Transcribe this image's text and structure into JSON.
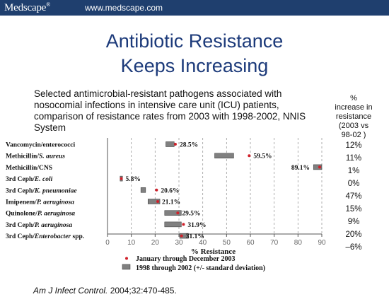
{
  "header": {
    "brand": "Medscape",
    "brand_mark": "®",
    "url": "www.medscape.com"
  },
  "slide": {
    "title_line1": "Antibiotic Resistance",
    "title_line2": "Keeps Increasing",
    "subtitle": "Selected antimicrobial-resistant pathogens associated with nosocomial infections in intensive care unit (ICU) patients, comparison of resistance rates from 2003 with 1998-2002, NNIS System",
    "increase_header": [
      "%",
      "increase in",
      "resistance",
      "(2003 vs",
      "98-02 )"
    ],
    "increase_values": [
      "12%",
      "11%",
      "1%",
      "0%",
      "47%",
      "15%",
      "9%",
      "20%",
      "–6%"
    ],
    "citation_journal": "Am J Infect Control.",
    "citation_rest": " 2004;32:470-485."
  },
  "colors": {
    "header_bg": "#1f3f6e",
    "title": "#1c3a7a",
    "point": "#d0202a",
    "range_fill": "#808080"
  },
  "chart_data": {
    "type": "range-dot",
    "categories": [
      "Vancomycin/enterococci",
      "Methicillin/S. aureus",
      "Methicillin/CNS",
      "3rd Ceph/E. coli",
      "3rd Ceph/K. pneumoniae",
      "Imipenem/P. aeruginosa",
      "Quinolone/P. aeruginosa",
      "3rd Ceph/P. aeruginosa",
      "3rd Ceph/Enterobacter spp."
    ],
    "category_parts": [
      {
        "pre": "Vancomycin/enterococci",
        "it": "",
        "post": ""
      },
      {
        "pre": "Methicillin/",
        "it": "S. aureus",
        "post": ""
      },
      {
        "pre": "Methicillin/CNS",
        "it": "",
        "post": ""
      },
      {
        "pre": "3rd Ceph/",
        "it": "E. coli",
        "post": ""
      },
      {
        "pre": "3rd Ceph/",
        "it": "K. pneumoniae",
        "post": ""
      },
      {
        "pre": "Imipenem/",
        "it": "P. aeruginosa",
        "post": ""
      },
      {
        "pre": "Quinolone/",
        "it": "P. aeruginosa",
        "post": ""
      },
      {
        "pre": "3rd Ceph/",
        "it": "P. aeruginosa",
        "post": ""
      },
      {
        "pre": "3rd Ceph/",
        "it": "Enterobacter",
        "post": " spp."
      }
    ],
    "series": [
      {
        "name": "January through December 2003",
        "kind": "point",
        "values": [
          28.5,
          59.5,
          89.1,
          5.8,
          20.6,
          21.1,
          29.5,
          31.9,
          31.1
        ],
        "labels": [
          "28.5%",
          "59.5%",
          "89.1%",
          "5.8%",
          "20.6%",
          "21.1%",
          "29.5%",
          "31.9%",
          "31.1%"
        ]
      },
      {
        "name": "1998 through 2002 (+/- standard deviation)",
        "kind": "range",
        "ranges": [
          [
            24.5,
            28
          ],
          [
            45,
            53
          ],
          [
            86.5,
            90
          ],
          [
            5.3,
            6.3
          ],
          [
            14,
            16
          ],
          [
            17,
            22
          ],
          [
            24,
            31
          ],
          [
            24,
            31
          ],
          [
            30.3,
            34
          ]
        ]
      }
    ],
    "label_side": [
      "right",
      "right",
      "left",
      "right",
      "right",
      "right",
      "right",
      "right",
      "right"
    ],
    "xlabel": "% Resistance",
    "xlim": [
      0,
      90
    ],
    "xticks": [
      0,
      10,
      20,
      30,
      40,
      50,
      60,
      70,
      80,
      90
    ],
    "grid": "vertical dashed",
    "legend_position": "bottom"
  }
}
